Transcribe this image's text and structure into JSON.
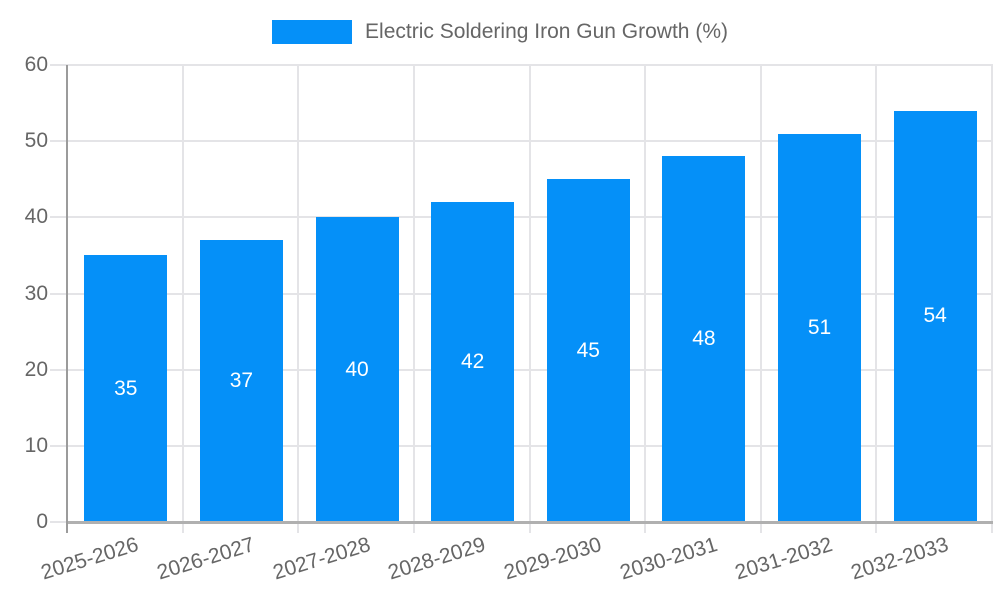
{
  "chart_data": {
    "type": "bar",
    "title": "",
    "legend_label": "Electric Soldering Iron Gun Growth (%)",
    "legend_position": "top",
    "categories": [
      "2025-2026",
      "2026-2027",
      "2027-2028",
      "2028-2029",
      "2029-2030",
      "2030-2031",
      "2031-2032",
      "2032-2033"
    ],
    "values": [
      35,
      37,
      40,
      42,
      45,
      48,
      51,
      54
    ],
    "xlabel": "",
    "ylabel": "",
    "ylim": [
      0,
      60
    ],
    "yticks": [
      0,
      10,
      20,
      30,
      40,
      50,
      60
    ],
    "grid": "on",
    "bar_value_labels": "inside-center"
  },
  "style": {
    "bar_color": "#0590f8",
    "grid_color": "#e4e4e7",
    "y_axis_color": "#9b9b9b",
    "x_axis_color": "#b0b0b0",
    "tick_text_color": "#666666",
    "value_label_color": "#ffffff"
  }
}
